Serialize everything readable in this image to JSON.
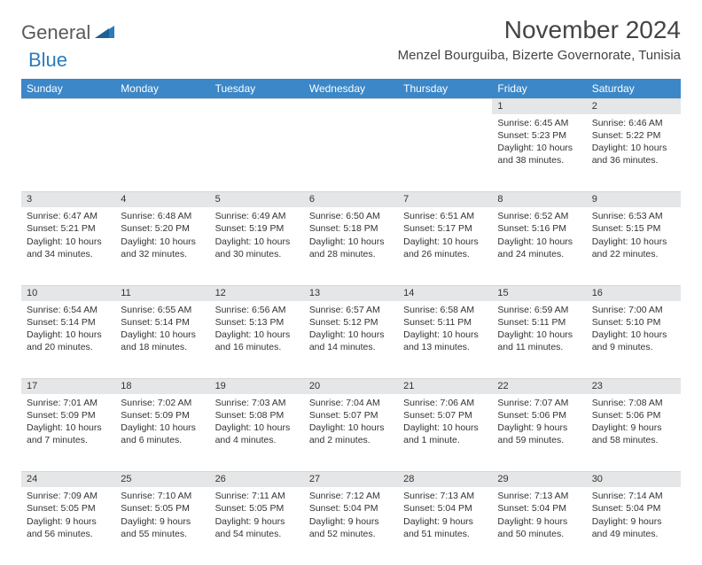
{
  "brand": {
    "part1": "General",
    "part2": "Blue"
  },
  "title": "November 2024",
  "location": "Menzel Bourguiba, Bizerte Governorate, Tunisia",
  "colors": {
    "header_bg": "#3b87c8",
    "header_text": "#ffffff",
    "daynum_bg": "#e4e6e8",
    "page_bg": "#ffffff",
    "text": "#333333",
    "brand_gray": "#5a5a5a",
    "brand_blue": "#2b7bbf"
  },
  "weekdays": [
    "Sunday",
    "Monday",
    "Tuesday",
    "Wednesday",
    "Thursday",
    "Friday",
    "Saturday"
  ],
  "weeks": [
    {
      "nums": [
        "",
        "",
        "",
        "",
        "",
        "1",
        "2"
      ],
      "cells": [
        null,
        null,
        null,
        null,
        null,
        {
          "sunrise": "Sunrise: 6:45 AM",
          "sunset": "Sunset: 5:23 PM",
          "day1": "Daylight: 10 hours",
          "day2": "and 38 minutes."
        },
        {
          "sunrise": "Sunrise: 6:46 AM",
          "sunset": "Sunset: 5:22 PM",
          "day1": "Daylight: 10 hours",
          "day2": "and 36 minutes."
        }
      ]
    },
    {
      "nums": [
        "3",
        "4",
        "5",
        "6",
        "7",
        "8",
        "9"
      ],
      "cells": [
        {
          "sunrise": "Sunrise: 6:47 AM",
          "sunset": "Sunset: 5:21 PM",
          "day1": "Daylight: 10 hours",
          "day2": "and 34 minutes."
        },
        {
          "sunrise": "Sunrise: 6:48 AM",
          "sunset": "Sunset: 5:20 PM",
          "day1": "Daylight: 10 hours",
          "day2": "and 32 minutes."
        },
        {
          "sunrise": "Sunrise: 6:49 AM",
          "sunset": "Sunset: 5:19 PM",
          "day1": "Daylight: 10 hours",
          "day2": "and 30 minutes."
        },
        {
          "sunrise": "Sunrise: 6:50 AM",
          "sunset": "Sunset: 5:18 PM",
          "day1": "Daylight: 10 hours",
          "day2": "and 28 minutes."
        },
        {
          "sunrise": "Sunrise: 6:51 AM",
          "sunset": "Sunset: 5:17 PM",
          "day1": "Daylight: 10 hours",
          "day2": "and 26 minutes."
        },
        {
          "sunrise": "Sunrise: 6:52 AM",
          "sunset": "Sunset: 5:16 PM",
          "day1": "Daylight: 10 hours",
          "day2": "and 24 minutes."
        },
        {
          "sunrise": "Sunrise: 6:53 AM",
          "sunset": "Sunset: 5:15 PM",
          "day1": "Daylight: 10 hours",
          "day2": "and 22 minutes."
        }
      ]
    },
    {
      "nums": [
        "10",
        "11",
        "12",
        "13",
        "14",
        "15",
        "16"
      ],
      "cells": [
        {
          "sunrise": "Sunrise: 6:54 AM",
          "sunset": "Sunset: 5:14 PM",
          "day1": "Daylight: 10 hours",
          "day2": "and 20 minutes."
        },
        {
          "sunrise": "Sunrise: 6:55 AM",
          "sunset": "Sunset: 5:14 PM",
          "day1": "Daylight: 10 hours",
          "day2": "and 18 minutes."
        },
        {
          "sunrise": "Sunrise: 6:56 AM",
          "sunset": "Sunset: 5:13 PM",
          "day1": "Daylight: 10 hours",
          "day2": "and 16 minutes."
        },
        {
          "sunrise": "Sunrise: 6:57 AM",
          "sunset": "Sunset: 5:12 PM",
          "day1": "Daylight: 10 hours",
          "day2": "and 14 minutes."
        },
        {
          "sunrise": "Sunrise: 6:58 AM",
          "sunset": "Sunset: 5:11 PM",
          "day1": "Daylight: 10 hours",
          "day2": "and 13 minutes."
        },
        {
          "sunrise": "Sunrise: 6:59 AM",
          "sunset": "Sunset: 5:11 PM",
          "day1": "Daylight: 10 hours",
          "day2": "and 11 minutes."
        },
        {
          "sunrise": "Sunrise: 7:00 AM",
          "sunset": "Sunset: 5:10 PM",
          "day1": "Daylight: 10 hours",
          "day2": "and 9 minutes."
        }
      ]
    },
    {
      "nums": [
        "17",
        "18",
        "19",
        "20",
        "21",
        "22",
        "23"
      ],
      "cells": [
        {
          "sunrise": "Sunrise: 7:01 AM",
          "sunset": "Sunset: 5:09 PM",
          "day1": "Daylight: 10 hours",
          "day2": "and 7 minutes."
        },
        {
          "sunrise": "Sunrise: 7:02 AM",
          "sunset": "Sunset: 5:09 PM",
          "day1": "Daylight: 10 hours",
          "day2": "and 6 minutes."
        },
        {
          "sunrise": "Sunrise: 7:03 AM",
          "sunset": "Sunset: 5:08 PM",
          "day1": "Daylight: 10 hours",
          "day2": "and 4 minutes."
        },
        {
          "sunrise": "Sunrise: 7:04 AM",
          "sunset": "Sunset: 5:07 PM",
          "day1": "Daylight: 10 hours",
          "day2": "and 2 minutes."
        },
        {
          "sunrise": "Sunrise: 7:06 AM",
          "sunset": "Sunset: 5:07 PM",
          "day1": "Daylight: 10 hours",
          "day2": "and 1 minute."
        },
        {
          "sunrise": "Sunrise: 7:07 AM",
          "sunset": "Sunset: 5:06 PM",
          "day1": "Daylight: 9 hours",
          "day2": "and 59 minutes."
        },
        {
          "sunrise": "Sunrise: 7:08 AM",
          "sunset": "Sunset: 5:06 PM",
          "day1": "Daylight: 9 hours",
          "day2": "and 58 minutes."
        }
      ]
    },
    {
      "nums": [
        "24",
        "25",
        "26",
        "27",
        "28",
        "29",
        "30"
      ],
      "cells": [
        {
          "sunrise": "Sunrise: 7:09 AM",
          "sunset": "Sunset: 5:05 PM",
          "day1": "Daylight: 9 hours",
          "day2": "and 56 minutes."
        },
        {
          "sunrise": "Sunrise: 7:10 AM",
          "sunset": "Sunset: 5:05 PM",
          "day1": "Daylight: 9 hours",
          "day2": "and 55 minutes."
        },
        {
          "sunrise": "Sunrise: 7:11 AM",
          "sunset": "Sunset: 5:05 PM",
          "day1": "Daylight: 9 hours",
          "day2": "and 54 minutes."
        },
        {
          "sunrise": "Sunrise: 7:12 AM",
          "sunset": "Sunset: 5:04 PM",
          "day1": "Daylight: 9 hours",
          "day2": "and 52 minutes."
        },
        {
          "sunrise": "Sunrise: 7:13 AM",
          "sunset": "Sunset: 5:04 PM",
          "day1": "Daylight: 9 hours",
          "day2": "and 51 minutes."
        },
        {
          "sunrise": "Sunrise: 7:13 AM",
          "sunset": "Sunset: 5:04 PM",
          "day1": "Daylight: 9 hours",
          "day2": "and 50 minutes."
        },
        {
          "sunrise": "Sunrise: 7:14 AM",
          "sunset": "Sunset: 5:04 PM",
          "day1": "Daylight: 9 hours",
          "day2": "and 49 minutes."
        }
      ]
    }
  ]
}
